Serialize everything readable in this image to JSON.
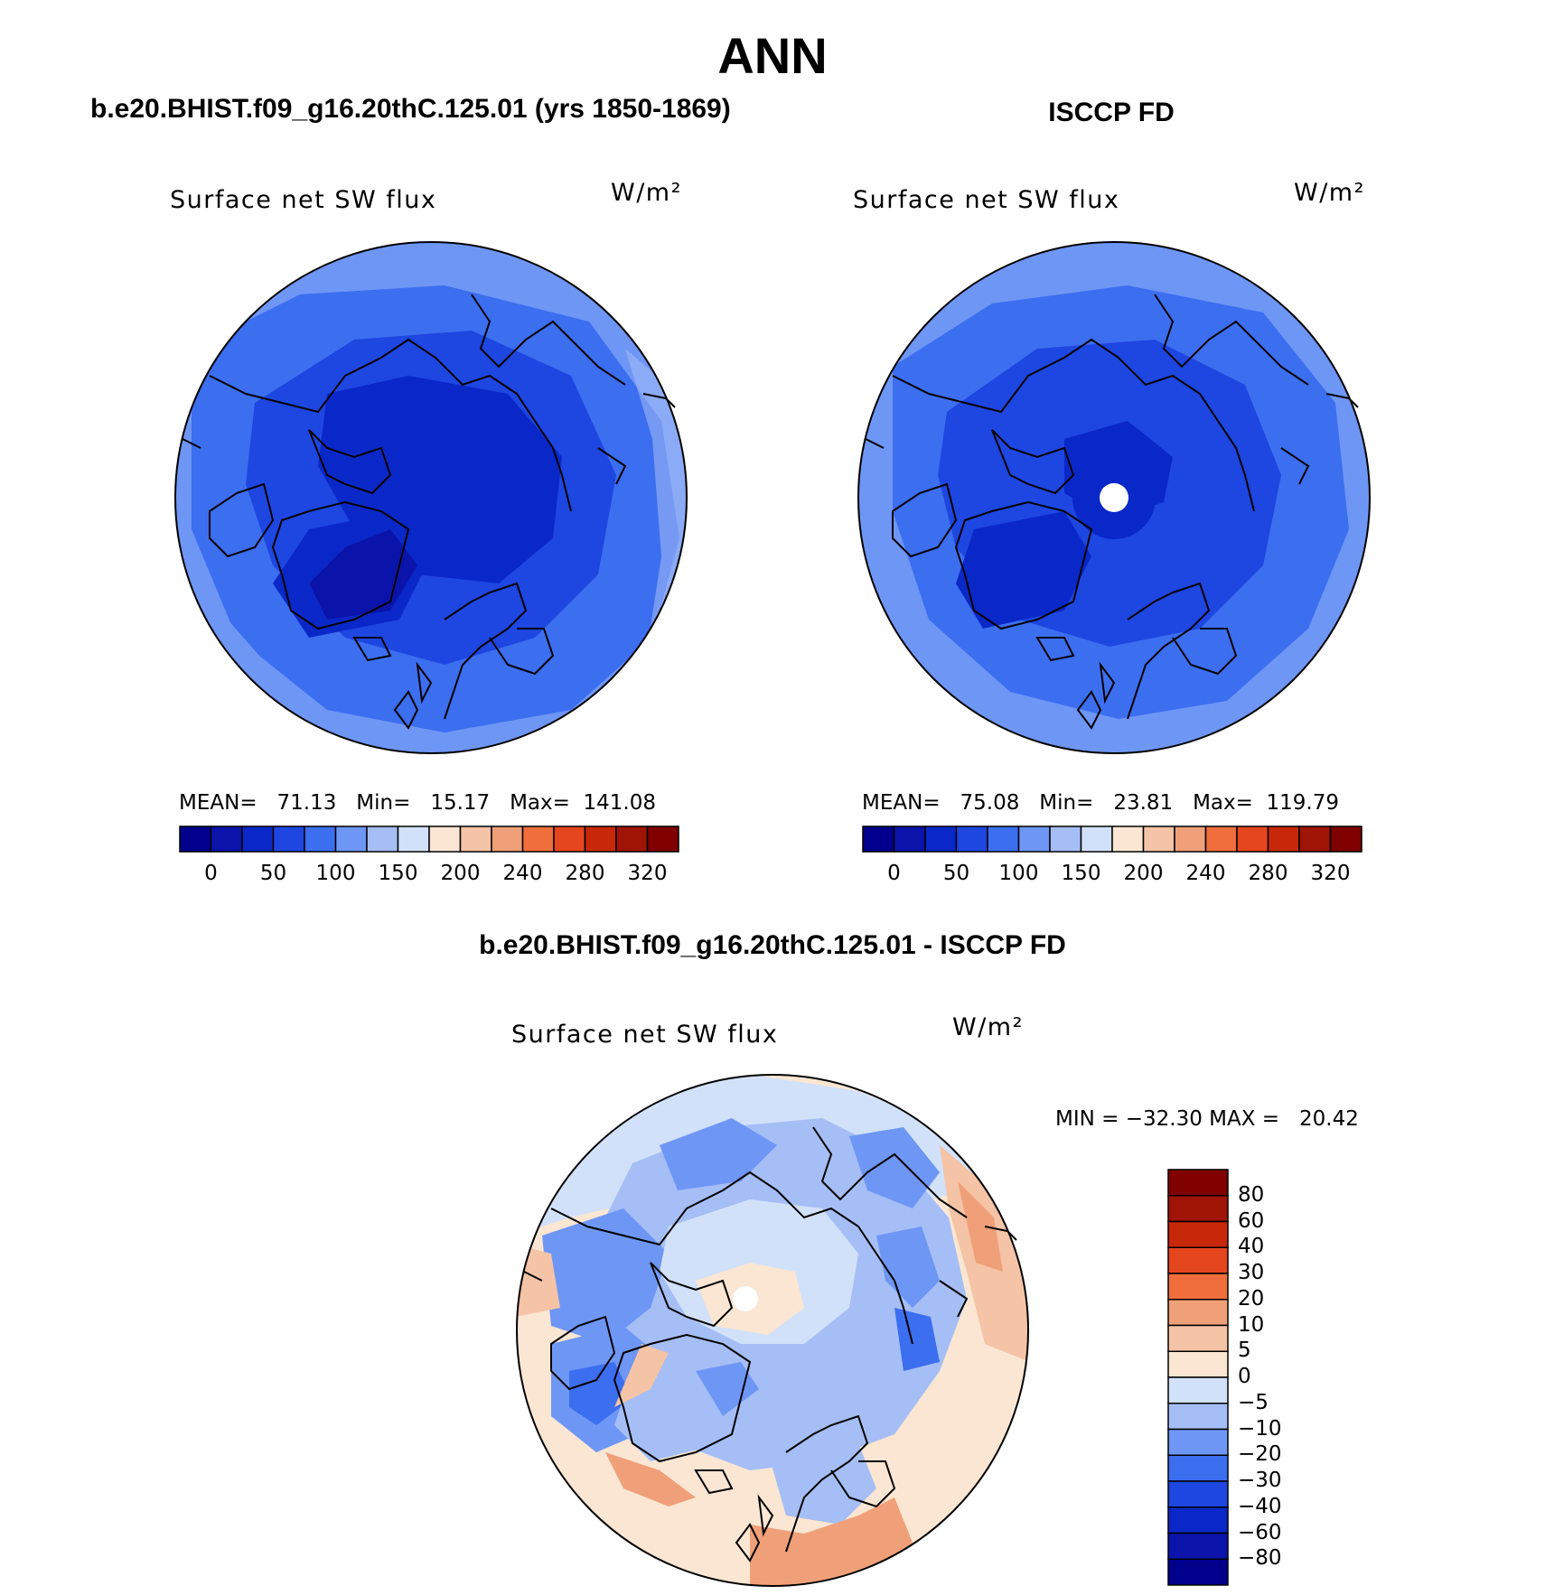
{
  "figure": {
    "title": "ANN",
    "units": "W/m²"
  },
  "panels": {
    "left": {
      "title": "b.e20.BHIST.f09_g16.20thC.125.01 (yrs 1850-1869)",
      "variable": "Surface net SW flux",
      "units": "W/m²",
      "stats": "MEAN=   71.13   Min=   15.17   Max=  141.08"
    },
    "right": {
      "title": "ISCCP FD",
      "variable": "Surface net SW flux",
      "units": "W/m²",
      "stats": "MEAN=   75.08   Min=   23.81   Max=  119.79"
    },
    "diff": {
      "title": "b.e20.BHIST.f09_g16.20thC.125.01 - ISCCP FD",
      "variable": "Surface net SW flux",
      "units": "W/m²",
      "stats": "MIN = −32.30 MAX =   20.42"
    }
  },
  "colorbars": {
    "absolute": {
      "labels": [
        "0",
        "50",
        "100",
        "150",
        "200",
        "240",
        "280",
        "320"
      ],
      "colors": [
        "#00008c",
        "#0a14aa",
        "#0a28c8",
        "#1e46e1",
        "#3c6ef0",
        "#6e96f5",
        "#a5bef5",
        "#d2e1fa",
        "#fae6d2",
        "#f5c3a5",
        "#f0a078",
        "#f06e3c",
        "#e6461e",
        "#c8280a",
        "#a01405",
        "#800000"
      ]
    },
    "difference": {
      "labels": [
        "80",
        "60",
        "40",
        "30",
        "20",
        "10",
        "5",
        "0",
        "−5",
        "−10",
        "−20",
        "−30",
        "−40",
        "−60",
        "−80"
      ],
      "colors": [
        "#800000",
        "#a01405",
        "#c8280a",
        "#e6461e",
        "#f06e3c",
        "#f0a078",
        "#f5c3a5",
        "#fae6d2",
        "#d2e1fa",
        "#a5bef5",
        "#6e96f5",
        "#3c6ef0",
        "#1e46e1",
        "#0a28c8",
        "#0a14aa",
        "#00008c"
      ]
    }
  },
  "chart_data": [
    {
      "type": "heatmap",
      "projection": "north polar stereographic",
      "title": "b.e20.BHIST.f09_g16.20thC.125.01 (yrs 1850-1869)",
      "variable": "Surface net SW flux",
      "units": "W/m²",
      "mean": 71.13,
      "min": 15.17,
      "max": 141.08,
      "levels": [
        0,
        50,
        100,
        150,
        200,
        240,
        280,
        320
      ]
    },
    {
      "type": "heatmap",
      "projection": "north polar stereographic",
      "title": "ISCCP FD",
      "variable": "Surface net SW flux",
      "units": "W/m²",
      "mean": 75.08,
      "min": 23.81,
      "max": 119.79,
      "levels": [
        0,
        50,
        100,
        150,
        200,
        240,
        280,
        320
      ]
    },
    {
      "type": "heatmap",
      "projection": "north polar stereographic",
      "title": "b.e20.BHIST.f09_g16.20thC.125.01 - ISCCP FD",
      "variable": "Surface net SW flux",
      "units": "W/m²",
      "min": -32.3,
      "max": 20.42,
      "levels": [
        -80,
        -60,
        -40,
        -30,
        -20,
        -10,
        -5,
        0,
        5,
        10,
        20,
        30,
        40,
        60,
        80
      ]
    }
  ]
}
